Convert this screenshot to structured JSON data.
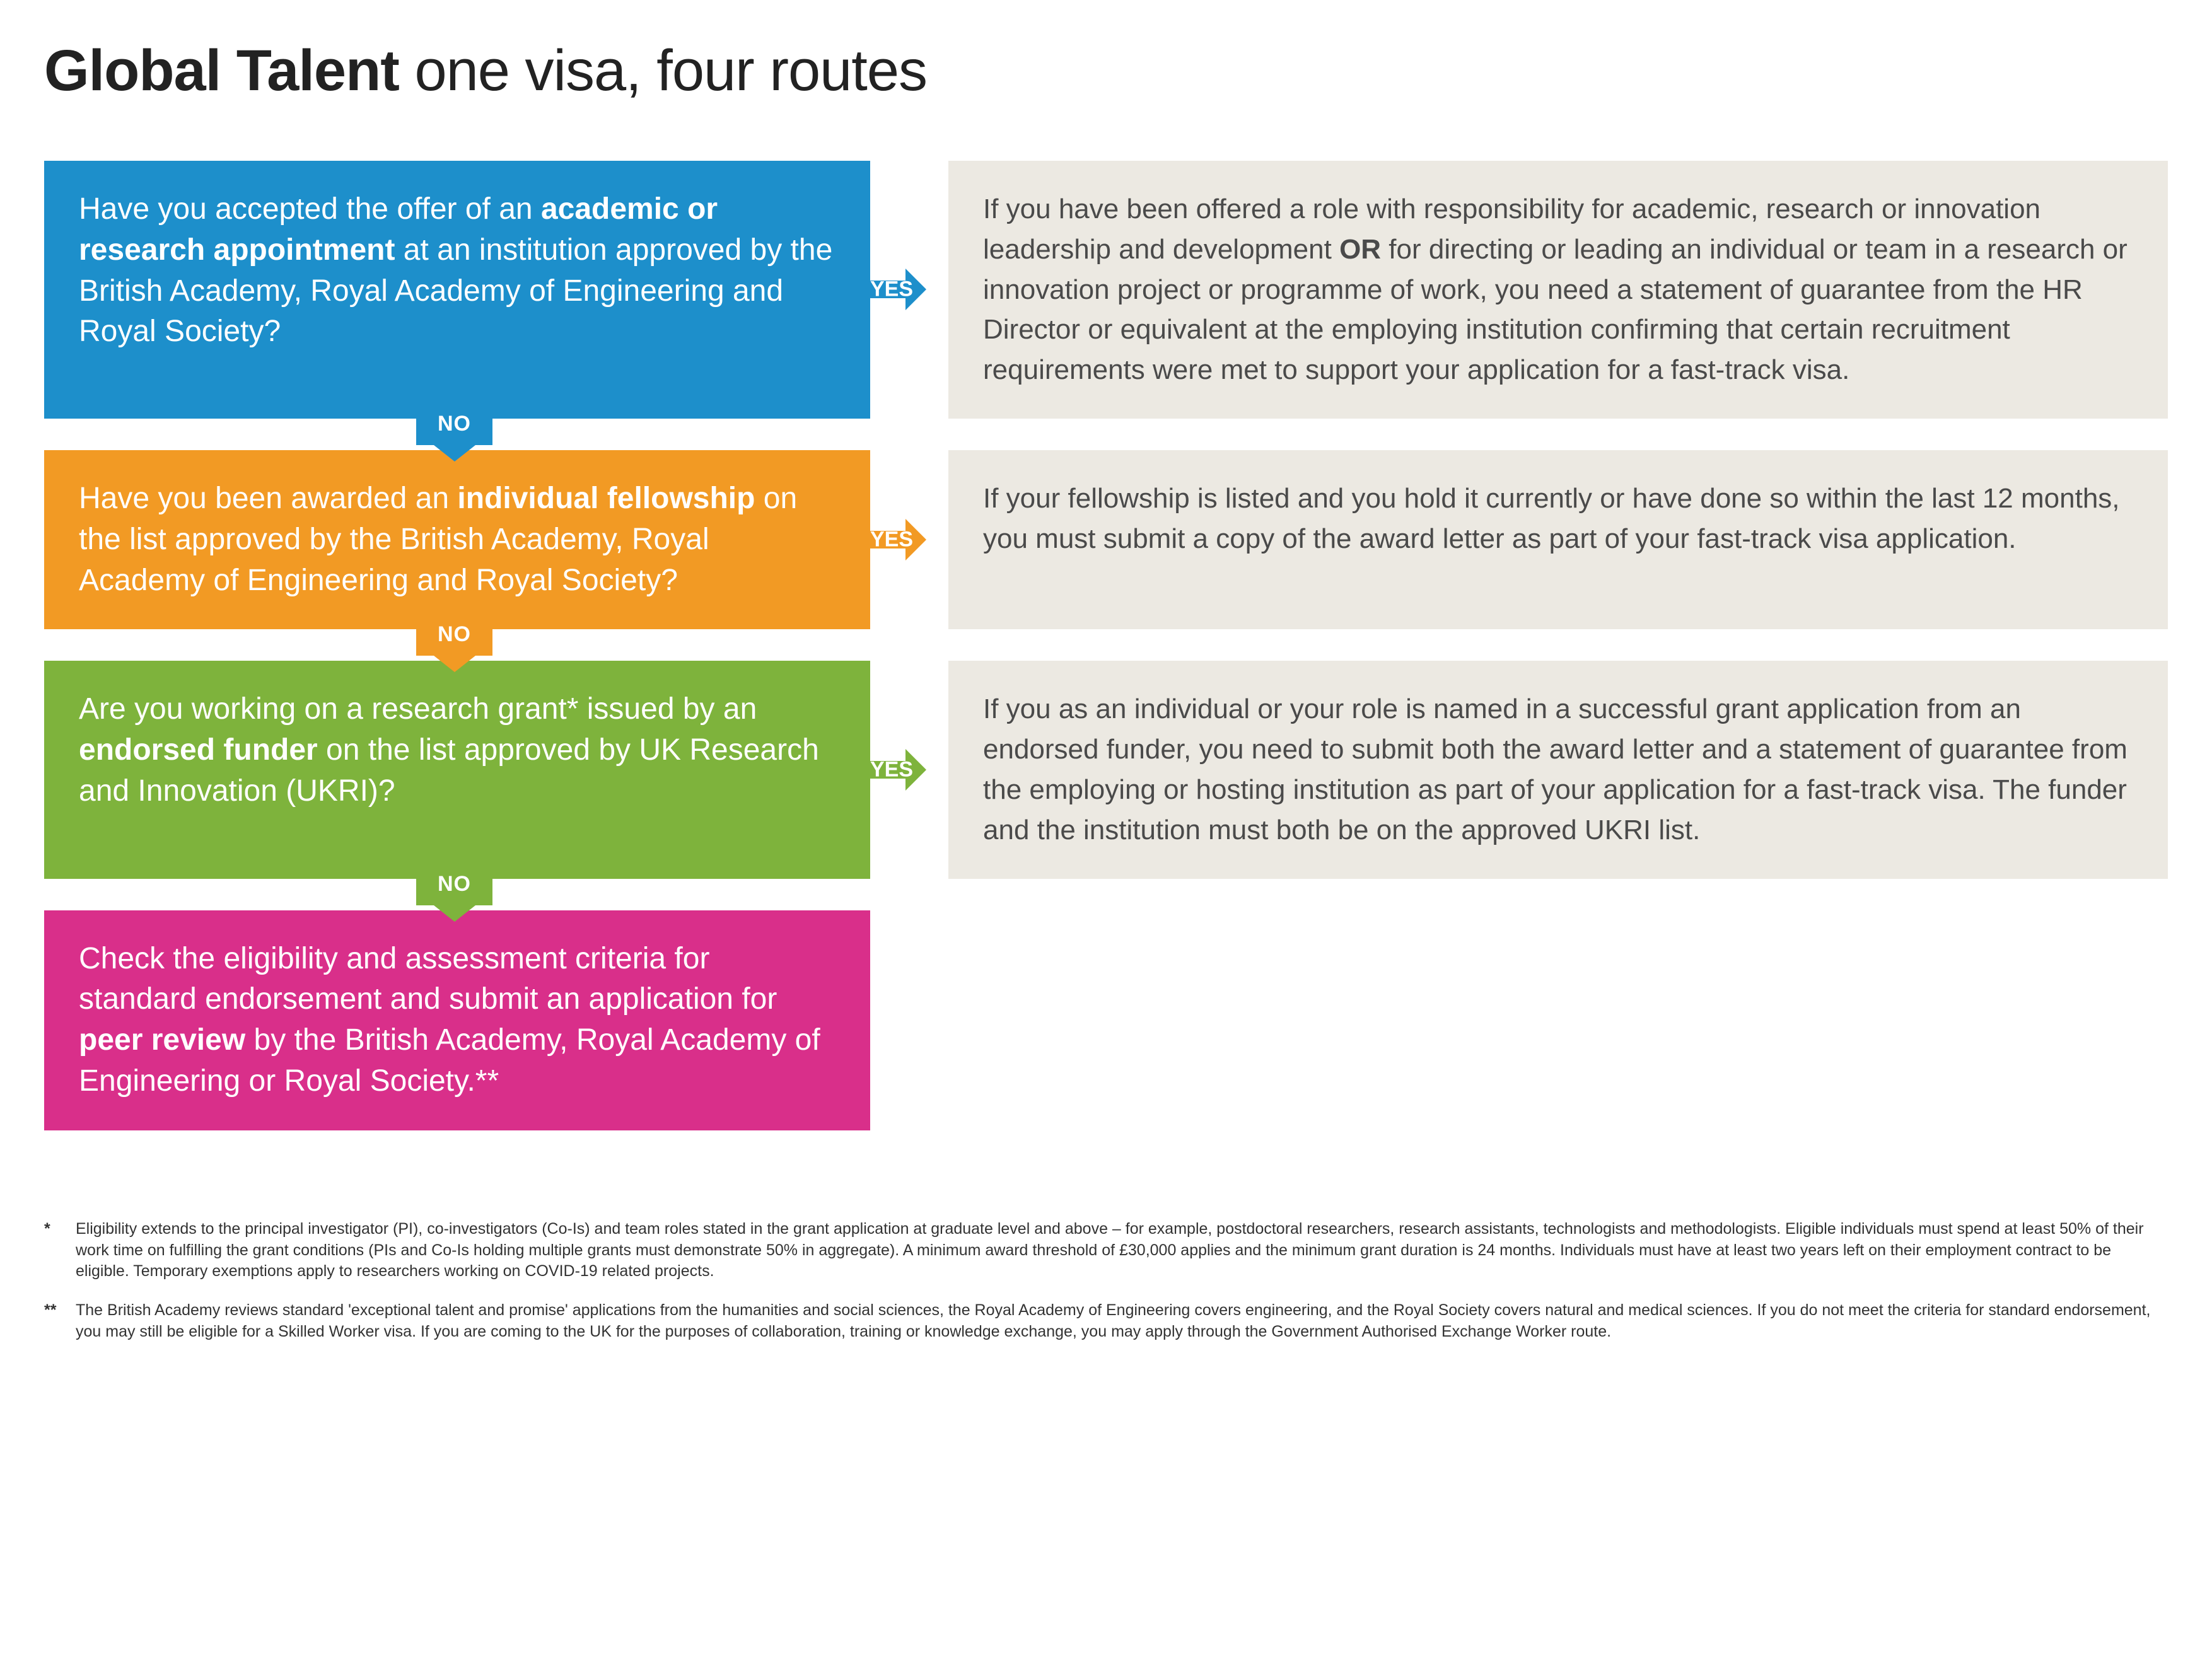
{
  "type": "flowchart",
  "background_color": "#ffffff",
  "answer_bg": "#ece9e2",
  "title_bold": "Global Talent",
  "title_rest": " one visa, four routes",
  "title_fontsize": 92,
  "body_fontsize": 48,
  "answer_fontsize": 44,
  "yes_label": "YES",
  "no_label": "NO",
  "colors": {
    "blue": "#1d8fcb",
    "orange": "#f29a24",
    "green": "#7eb33c",
    "magenta": "#d92f8a"
  },
  "steps": [
    {
      "color_key": "blue",
      "question_pre": "Have you accepted the offer of an ",
      "question_bold": "academic or research appointment",
      "question_post": " at an institution approved by the British Academy, Royal Academy of Engineering and Royal Society?",
      "answer_pre": "If you have been offered a role with responsibility for academic, research or innovation leadership and development ",
      "answer_bold": "OR",
      "answer_post": " for directing or leading an individual or team in a research or innovation project or programme of work, you need a statement of guarantee from the HR Director or equivalent at the employing institution confirming that certain recruitment requirements were met to support your application for a fast-track visa.",
      "has_yes": true,
      "has_no": true
    },
    {
      "color_key": "orange",
      "question_pre": "Have you been awarded an ",
      "question_bold": "individual fellowship",
      "question_post": " on the list approved by the British Academy, Royal Academy of Engineering and Royal Society?",
      "answer_pre": "If your fellowship is listed and you hold it currently or have done so within the last 12 months, you must submit a copy of the award letter as part of your fast-track visa application.",
      "answer_bold": "",
      "answer_post": "",
      "has_yes": true,
      "has_no": true
    },
    {
      "color_key": "green",
      "question_pre": "Are you working on a research grant* issued by an ",
      "question_bold": "endorsed funder",
      "question_post": " on the list approved by UK Research and Innovation (UKRI)?",
      "answer_pre": "If you as an individual or your role is named in a successful grant application from an endorsed funder, you need to submit both the award letter and a statement of guarantee from the employing or hosting institution as part of your application for a fast-track visa. The funder and the institution must both be on the approved UKRI list.",
      "answer_bold": "",
      "answer_post": "",
      "has_yes": true,
      "has_no": true
    },
    {
      "color_key": "magenta",
      "question_pre": "Check the eligibility and assessment criteria for standard endorsement and submit an application for ",
      "question_bold": "peer review",
      "question_post": " by the British Academy, Royal Academy of Engineering or Royal Society.**",
      "answer_pre": "",
      "answer_bold": "",
      "answer_post": "",
      "has_yes": false,
      "has_no": false
    }
  ],
  "footnotes": [
    {
      "marker": "*",
      "text": "Eligibility extends to the principal investigator (PI), co-investigators (Co-Is) and team roles stated in the grant application at graduate level and above – for example, postdoctoral researchers, research assistants, technologists and methodologists. Eligible individuals must spend at least 50% of their work time on fulfilling the grant conditions (PIs and Co-Is holding multiple grants must demonstrate 50% in aggregate). A minimum award threshold of £30,000 applies and the minimum grant duration is 24 months. Individuals must have at least two years left on their employment contract to be eligible. Temporary exemptions apply to researchers working on COVID-19 related projects."
    },
    {
      "marker": "**",
      "text": "The British Academy reviews standard 'exceptional talent and promise' applications from the humanities and social sciences, the Royal Academy of Engineering covers engineering, and the Royal Society covers natural and medical sciences. If you do not meet the criteria for standard endorsement, you may still be eligible for a Skilled Worker visa. If you are coming to the UK for the purposes of collaboration, training or knowledge exchange, you may apply through the Government Authorised Exchange Worker route."
    }
  ]
}
